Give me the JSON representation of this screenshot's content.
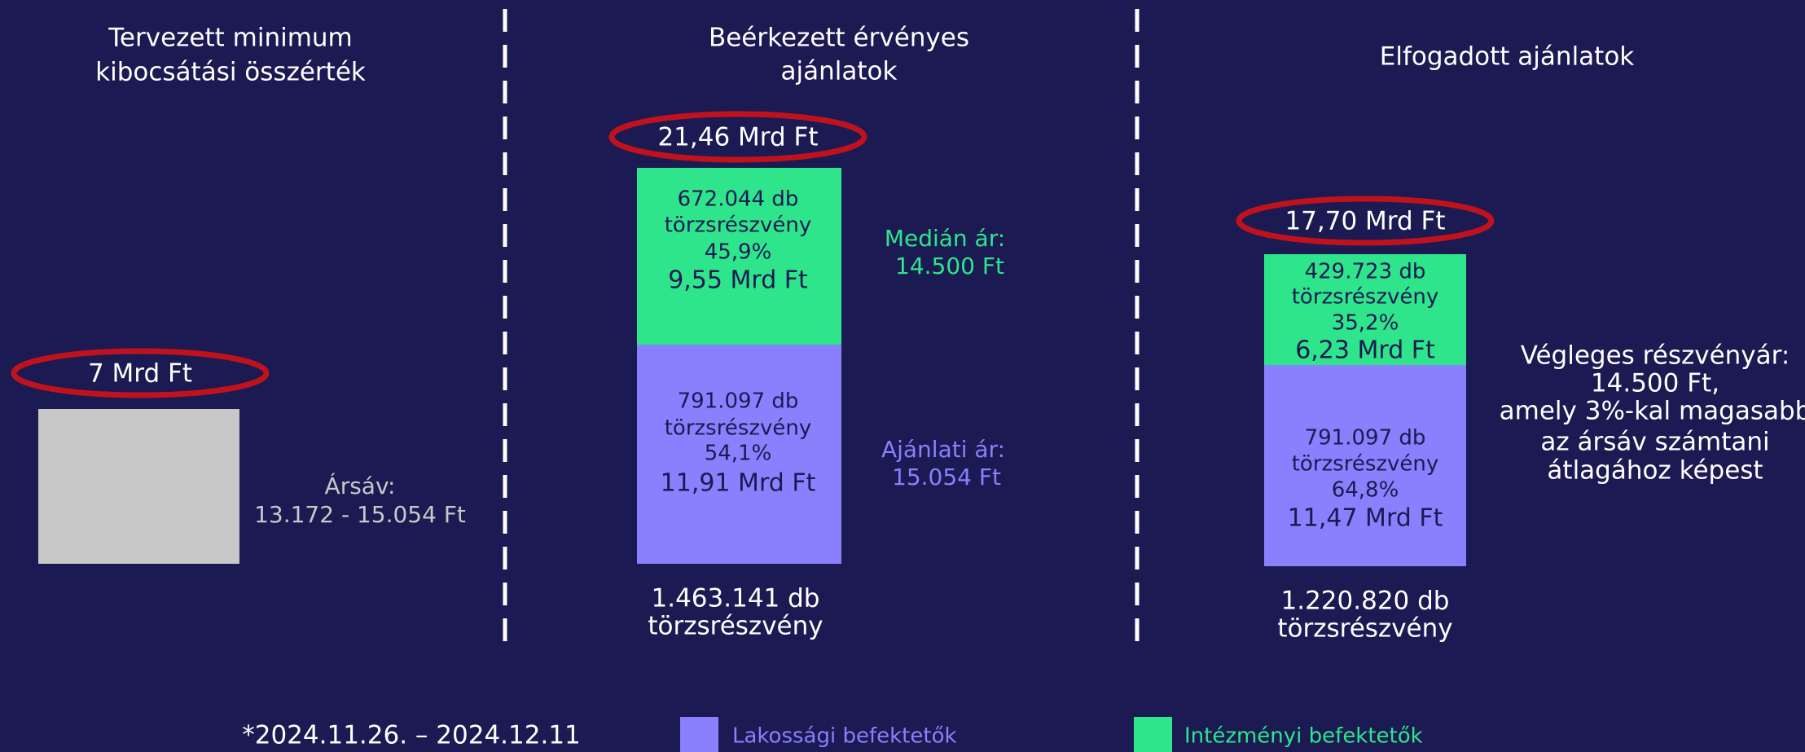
{
  "columns": [
    {
      "title": [
        "Tervezett minimum",
        "kibocsátási összérték"
      ],
      "total": "7 Mrd Ft",
      "note": [
        "Ársáv:",
        "13.172 - 15.054 Ft"
      ]
    },
    {
      "title": [
        "Beérkezett érvényes",
        "ajánlatok"
      ],
      "total": "21,46 Mrd Ft",
      "institutional": [
        "672.044 db",
        "törzsrészvény",
        "45,9%",
        "9,55 Mrd Ft"
      ],
      "retail": [
        "791.097 db",
        "törzsrészvény",
        "54,1%",
        "11,91 Mrd Ft"
      ],
      "shares": [
        "1.463.141 db",
        "törzsrészvény"
      ],
      "median_price": [
        "Medián ár:",
        "14.500 Ft"
      ],
      "offer_price": [
        "Ajánlati ár:",
        "15.054 Ft"
      ]
    },
    {
      "title": [
        "Elfogadott ajánlatok"
      ],
      "total": "17,70 Mrd Ft",
      "institutional": [
        "429.723 db",
        "törzsrészvény",
        "35,2%",
        "6,23 Mrd Ft"
      ],
      "retail": [
        "791.097 db",
        "törzsrészvény",
        "64,8%",
        "11,47 Mrd Ft"
      ],
      "shares": [
        "1.220.820 db",
        "törzsrészvény"
      ],
      "final_price": [
        "Végleges részvényár:",
        "14.500 Ft,",
        "amely 3%-kal magasabb",
        "az ársáv számtani",
        "átlagához képest"
      ]
    }
  ],
  "footer": {
    "period": "*2024.11.26. – 2024.12.11",
    "legend": [
      "Lakossági befektetők",
      "Intézményi befektetők"
    ]
  }
}
